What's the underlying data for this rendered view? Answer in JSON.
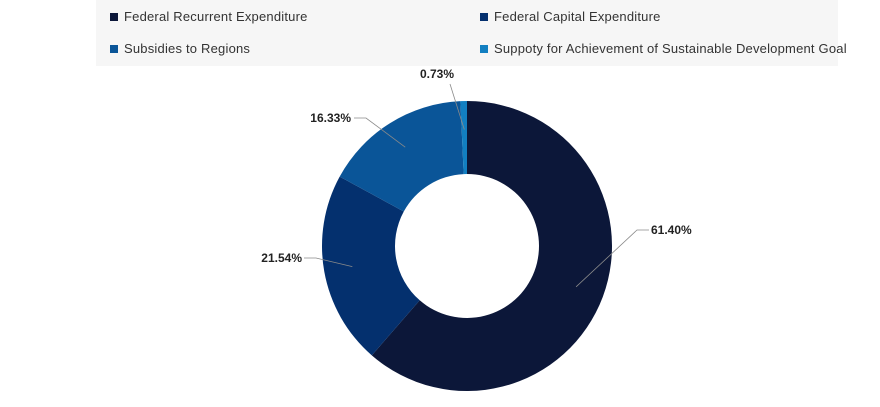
{
  "chart_data": {
    "type": "pie",
    "subtype": "donut",
    "title": "",
    "legend_position": "top",
    "series": [
      {
        "name": "Federal Recurrent Expenditure",
        "value": 61.4,
        "label": "61.40%",
        "color": "#0c1739"
      },
      {
        "name": "Federal Capital Expenditure",
        "value": 21.54,
        "label": "21.54%",
        "color": "#04306e"
      },
      {
        "name": "Subsidies to Regions",
        "value": 16.33,
        "label": "16.33%",
        "color": "#0a5598"
      },
      {
        "name": "Suppoty for Achievement of Sustainable Development Goal",
        "value": 0.73,
        "label": "0.73%",
        "color": "#127fc1"
      }
    ]
  }
}
